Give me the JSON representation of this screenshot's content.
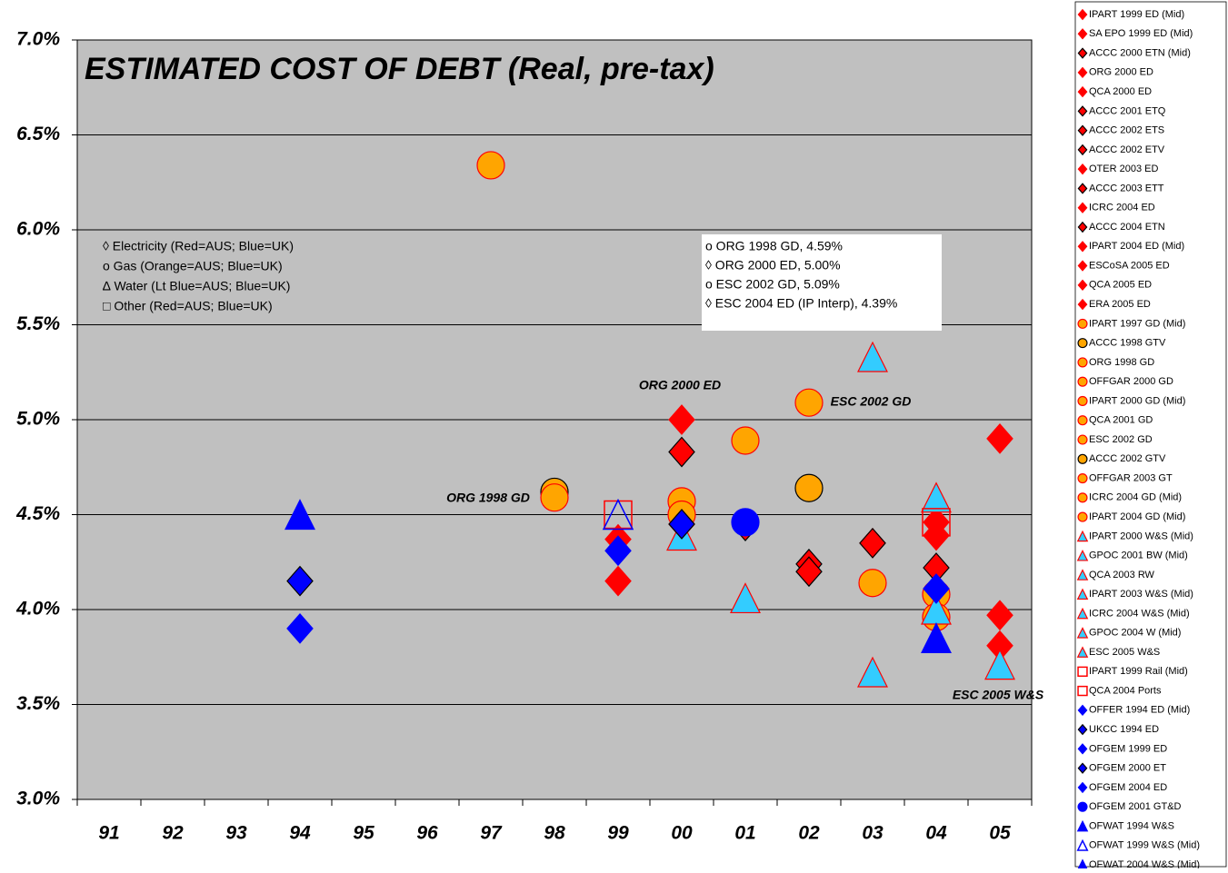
{
  "chart_data": {
    "type": "scatter",
    "title": "ESTIMATED COST OF DEBT (Real, pre-tax)",
    "categories": [
      "91",
      "92",
      "93",
      "94",
      "95",
      "96",
      "97",
      "98",
      "99",
      "00",
      "01",
      "02",
      "03",
      "04",
      "05"
    ],
    "ylim": [
      3.0,
      7.0
    ],
    "yticks": [
      {
        "value": 3.0,
        "label": "3.0%"
      },
      {
        "value": 3.5,
        "label": "3.5%"
      },
      {
        "value": 4.0,
        "label": "4.0%"
      },
      {
        "value": 4.5,
        "label": "4.5%"
      },
      {
        "value": 5.0,
        "label": "5.0%"
      },
      {
        "value": 5.5,
        "label": "5.5%"
      },
      {
        "value": 6.0,
        "label": "6.0%"
      },
      {
        "value": 6.5,
        "label": "6.5%"
      },
      {
        "value": 7.0,
        "label": "7.0%"
      }
    ],
    "grid": true,
    "legend": "right",
    "key": [
      "◊ Electricity (Red=AUS; Blue=UK)",
      "o  Gas  (Orange=AUS; Blue=UK)",
      "∆ Water  (Lt Blue=AUS; Blue=UK)",
      "□ Other  (Red=AUS; Blue=UK)"
    ],
    "notes": [
      "o ORG 1998 GD, 4.59%",
      "◊ ORG 2000 ED, 5.00%",
      "o ESC 2002 GD, 5.09%",
      "◊ ESC 2004 ED (IP Interp), 4.39%"
    ],
    "annotations": [
      "ORG 2000 ED",
      "ORG 1998 GD",
      "ESC 2002 GD",
      "ESC 2005 W&S"
    ],
    "series": [
      {
        "name": "IPART 1999 ED (Mid)",
        "marker": "diamond",
        "color": "#ff0000",
        "edge": "#ff0000",
        "values": [
          null,
          null,
          null,
          null,
          null,
          null,
          null,
          null,
          4.37,
          null,
          null,
          null,
          null,
          null,
          null
        ]
      },
      {
        "name": "SA EPO 1999 ED (Mid)",
        "marker": "diamond",
        "color": "#ff0000",
        "edge": "#ff0000",
        "values": [
          null,
          null,
          null,
          null,
          null,
          null,
          null,
          null,
          4.15,
          null,
          null,
          null,
          null,
          null,
          null
        ]
      },
      {
        "name": "ACCC 2000 ETN (Mid)",
        "marker": "diamond",
        "color": "#ff0000",
        "edge": "#000000",
        "values": [
          null,
          null,
          null,
          null,
          null,
          null,
          null,
          null,
          null,
          4.83,
          null,
          null,
          null,
          null,
          null
        ]
      },
      {
        "name": "ORG 2000 ED",
        "marker": "diamond",
        "color": "#ff0000",
        "edge": "#ff0000",
        "values": [
          null,
          null,
          null,
          null,
          null,
          null,
          null,
          null,
          null,
          5.0,
          null,
          null,
          null,
          null,
          null
        ]
      },
      {
        "name": "QCA 2000 ED",
        "marker": "diamond",
        "color": "#ff0000",
        "edge": "#ff0000",
        "values": [
          null,
          null,
          null,
          null,
          null,
          null,
          null,
          null,
          null,
          4.45,
          null,
          null,
          null,
          null,
          null
        ]
      },
      {
        "name": "ACCC 2001 ETQ",
        "marker": "diamond",
        "color": "#ff0000",
        "edge": "#000000",
        "values": [
          null,
          null,
          null,
          null,
          null,
          null,
          null,
          null,
          null,
          null,
          4.44,
          null,
          null,
          null,
          null
        ]
      },
      {
        "name": "ACCC 2002 ETS",
        "marker": "diamond",
        "color": "#ff0000",
        "edge": "#000000",
        "values": [
          null,
          null,
          null,
          null,
          null,
          null,
          null,
          null,
          null,
          null,
          null,
          4.24,
          null,
          null,
          null
        ]
      },
      {
        "name": "ACCC 2002 ETV",
        "marker": "diamond",
        "color": "#ff0000",
        "edge": "#000000",
        "values": [
          null,
          null,
          null,
          null,
          null,
          null,
          null,
          null,
          null,
          null,
          null,
          4.2,
          null,
          null,
          null
        ]
      },
      {
        "name": "OTER 2003 ED",
        "marker": "diamond",
        "color": "#ff0000",
        "edge": "#ff0000",
        "values": [
          null,
          null,
          null,
          null,
          null,
          null,
          null,
          null,
          null,
          null,
          null,
          null,
          4.35,
          null,
          null
        ]
      },
      {
        "name": "ACCC 2003 ETT",
        "marker": "diamond",
        "color": "#ff0000",
        "edge": "#000000",
        "values": [
          null,
          null,
          null,
          null,
          null,
          null,
          null,
          null,
          null,
          null,
          null,
          null,
          4.35,
          null,
          null
        ]
      },
      {
        "name": "ICRC 2004 ED",
        "marker": "diamond",
        "color": "#ff0000",
        "edge": "#ff0000",
        "values": [
          null,
          null,
          null,
          null,
          null,
          null,
          null,
          null,
          null,
          null,
          null,
          null,
          null,
          4.39,
          null
        ]
      },
      {
        "name": "ACCC 2004 ETN",
        "marker": "diamond",
        "color": "#ff0000",
        "edge": "#000000",
        "values": [
          null,
          null,
          null,
          null,
          null,
          null,
          null,
          null,
          null,
          null,
          null,
          null,
          null,
          4.22,
          null
        ]
      },
      {
        "name": "IPART 2004 ED (Mid)",
        "marker": "diamond",
        "color": "#ff0000",
        "edge": "#ff0000",
        "values": [
          null,
          null,
          null,
          null,
          null,
          null,
          null,
          null,
          null,
          null,
          null,
          null,
          null,
          4.46,
          null
        ]
      },
      {
        "name": "ESCoSA 2005 ED",
        "marker": "diamond",
        "color": "#ff0000",
        "edge": "#ff0000",
        "values": [
          null,
          null,
          null,
          null,
          null,
          null,
          null,
          null,
          null,
          null,
          null,
          null,
          null,
          null,
          4.9
        ]
      },
      {
        "name": "QCA 2005 ED",
        "marker": "diamond",
        "color": "#ff0000",
        "edge": "#ff0000",
        "values": [
          null,
          null,
          null,
          null,
          null,
          null,
          null,
          null,
          null,
          null,
          null,
          null,
          null,
          null,
          3.97
        ]
      },
      {
        "name": "ERA 2005 ED",
        "marker": "diamond",
        "color": "#ff0000",
        "edge": "#ff0000",
        "values": [
          null,
          null,
          null,
          null,
          null,
          null,
          null,
          null,
          null,
          null,
          null,
          null,
          null,
          null,
          3.81
        ]
      },
      {
        "name": "IPART 1997 GD (Mid)",
        "marker": "circle",
        "color": "#ffa500",
        "edge": "#ff0000",
        "values": [
          null,
          null,
          null,
          null,
          null,
          null,
          6.34,
          null,
          null,
          null,
          null,
          null,
          null,
          null,
          null
        ]
      },
      {
        "name": "ACCC 1998 GTV",
        "marker": "circle",
        "color": "#ffa500",
        "edge": "#000000",
        "values": [
          null,
          null,
          null,
          null,
          null,
          null,
          null,
          4.62,
          null,
          null,
          null,
          null,
          null,
          null,
          null
        ]
      },
      {
        "name": "ORG 1998 GD",
        "marker": "circle",
        "color": "#ffa500",
        "edge": "#ff0000",
        "values": [
          null,
          null,
          null,
          null,
          null,
          null,
          null,
          4.59,
          null,
          null,
          null,
          null,
          null,
          null,
          null
        ]
      },
      {
        "name": "OFFGAR 2000 GD",
        "marker": "circle",
        "color": "#ffa500",
        "edge": "#ff0000",
        "values": [
          null,
          null,
          null,
          null,
          null,
          null,
          null,
          null,
          null,
          4.57,
          null,
          null,
          null,
          null,
          null
        ]
      },
      {
        "name": "IPART 2000 GD (Mid)",
        "marker": "circle",
        "color": "#ffa500",
        "edge": "#ff0000",
        "values": [
          null,
          null,
          null,
          null,
          null,
          null,
          null,
          null,
          null,
          4.5,
          null,
          null,
          null,
          null,
          null
        ]
      },
      {
        "name": "QCA 2001 GD",
        "marker": "circle",
        "color": "#ffa500",
        "edge": "#ff0000",
        "values": [
          null,
          null,
          null,
          null,
          null,
          null,
          null,
          null,
          null,
          null,
          4.89,
          null,
          null,
          null,
          null
        ]
      },
      {
        "name": "ESC 2002 GD",
        "marker": "circle",
        "color": "#ffa500",
        "edge": "#ff0000",
        "values": [
          null,
          null,
          null,
          null,
          null,
          null,
          null,
          null,
          null,
          null,
          null,
          5.09,
          null,
          null,
          null
        ]
      },
      {
        "name": "ACCC 2002 GTV",
        "marker": "circle",
        "color": "#ffa500",
        "edge": "#000000",
        "values": [
          null,
          null,
          null,
          null,
          null,
          null,
          null,
          null,
          null,
          null,
          null,
          4.64,
          null,
          null,
          null
        ]
      },
      {
        "name": "OFFGAR 2003 GT",
        "marker": "circle",
        "color": "#ffa500",
        "edge": "#ff0000",
        "values": [
          null,
          null,
          null,
          null,
          null,
          null,
          null,
          null,
          null,
          null,
          null,
          null,
          4.14,
          null,
          null
        ]
      },
      {
        "name": "ICRC 2004 GD (Mid)",
        "marker": "circle",
        "color": "#ffa500",
        "edge": "#ff0000",
        "values": [
          null,
          null,
          null,
          null,
          null,
          null,
          null,
          null,
          null,
          null,
          null,
          null,
          null,
          4.08,
          null
        ]
      },
      {
        "name": "IPART 2004 GD (Mid)",
        "marker": "circle",
        "color": "#ffa500",
        "edge": "#ff0000",
        "values": [
          null,
          null,
          null,
          null,
          null,
          null,
          null,
          null,
          null,
          null,
          null,
          null,
          null,
          3.96,
          null
        ]
      },
      {
        "name": "IPART 2000 W&S (Mid)",
        "marker": "triangle",
        "color": "#33ccff",
        "edge": "#ff0000",
        "values": [
          null,
          null,
          null,
          null,
          null,
          null,
          null,
          null,
          null,
          4.39,
          null,
          null,
          null,
          null,
          null
        ]
      },
      {
        "name": "GPOC 2001 BW (Mid)",
        "marker": "triangle",
        "color": "#33ccff",
        "edge": "#ff0000",
        "values": [
          null,
          null,
          null,
          null,
          null,
          null,
          null,
          null,
          null,
          null,
          4.06,
          null,
          null,
          null,
          null
        ]
      },
      {
        "name": "QCA 2003 RW",
        "marker": "triangle",
        "color": "#33ccff",
        "edge": "#ff0000",
        "values": [
          null,
          null,
          null,
          null,
          null,
          null,
          null,
          null,
          null,
          null,
          null,
          null,
          5.33,
          null,
          null
        ]
      },
      {
        "name": "IPART 2003 W&S (Mid)",
        "marker": "triangle",
        "color": "#33ccff",
        "edge": "#ff0000",
        "values": [
          null,
          null,
          null,
          null,
          null,
          null,
          null,
          null,
          null,
          null,
          null,
          null,
          3.67,
          null,
          null
        ]
      },
      {
        "name": "ICRC 2004 W&S (Mid)",
        "marker": "triangle",
        "color": "#33ccff",
        "edge": "#ff0000",
        "values": [
          null,
          null,
          null,
          null,
          null,
          null,
          null,
          null,
          null,
          null,
          null,
          null,
          null,
          4.59,
          null
        ]
      },
      {
        "name": "GPOC 2004 W (Mid)",
        "marker": "triangle",
        "color": "#33ccff",
        "edge": "#ff0000",
        "values": [
          null,
          null,
          null,
          null,
          null,
          null,
          null,
          null,
          null,
          null,
          null,
          null,
          null,
          4.0,
          null
        ]
      },
      {
        "name": "ESC 2005 W&S",
        "marker": "triangle",
        "color": "#33ccff",
        "edge": "#ff0000",
        "values": [
          null,
          null,
          null,
          null,
          null,
          null,
          null,
          null,
          null,
          null,
          null,
          null,
          null,
          null,
          3.71
        ]
      },
      {
        "name": "IPART 1999 Rail (Mid)",
        "marker": "square",
        "color": "#ff0000",
        "edge": "#ff0000",
        "hollow": true,
        "values": [
          null,
          null,
          null,
          null,
          null,
          null,
          null,
          null,
          4.5,
          null,
          null,
          null,
          null,
          null,
          null
        ]
      },
      {
        "name": "QCA 2004 Ports",
        "marker": "square",
        "color": "#ff0000",
        "edge": "#ff0000",
        "hollow": true,
        "values": [
          null,
          null,
          null,
          null,
          null,
          null,
          null,
          null,
          null,
          null,
          null,
          null,
          null,
          4.46,
          null
        ]
      },
      {
        "name": "OFFER 1994 ED (Mid)",
        "marker": "diamond",
        "color": "#0000ff",
        "edge": "#0000ff",
        "values": [
          null,
          null,
          null,
          3.9,
          null,
          null,
          null,
          null,
          null,
          null,
          null,
          null,
          null,
          null,
          null
        ]
      },
      {
        "name": "UKCC 1994 ED",
        "marker": "diamond",
        "color": "#0000ff",
        "edge": "#000000",
        "values": [
          null,
          null,
          null,
          4.15,
          null,
          null,
          null,
          null,
          null,
          null,
          null,
          null,
          null,
          null,
          null
        ]
      },
      {
        "name": "OFGEM 1999 ED",
        "marker": "diamond",
        "color": "#0000ff",
        "edge": "#0000ff",
        "values": [
          null,
          null,
          null,
          null,
          null,
          null,
          null,
          null,
          4.31,
          null,
          null,
          null,
          null,
          null,
          null
        ]
      },
      {
        "name": "OFGEM 2000 ET",
        "marker": "diamond",
        "color": "#0000ff",
        "edge": "#000000",
        "values": [
          null,
          null,
          null,
          null,
          null,
          null,
          null,
          null,
          null,
          4.45,
          null,
          null,
          null,
          null,
          null
        ]
      },
      {
        "name": "OFGEM 2004 ED",
        "marker": "diamond",
        "color": "#0000ff",
        "edge": "#0000ff",
        "values": [
          null,
          null,
          null,
          null,
          null,
          null,
          null,
          null,
          null,
          null,
          null,
          null,
          null,
          4.11,
          null
        ]
      },
      {
        "name": "OFGEM 2001 GT&D",
        "marker": "circle",
        "color": "#0000ff",
        "edge": "#0000ff",
        "values": [
          null,
          null,
          null,
          null,
          null,
          null,
          null,
          null,
          null,
          null,
          4.46,
          null,
          null,
          null,
          null
        ]
      },
      {
        "name": "OFWAT 1994 W&S",
        "marker": "triangle",
        "color": "#0000ff",
        "edge": "#0000ff",
        "values": [
          null,
          null,
          null,
          4.5,
          null,
          null,
          null,
          null,
          null,
          null,
          null,
          null,
          null,
          null,
          null
        ]
      },
      {
        "name": "OFWAT 1999 W&S (Mid)",
        "marker": "triangle",
        "color": "#0000ff",
        "edge": "#0000ff",
        "hollow": true,
        "values": [
          null,
          null,
          null,
          null,
          null,
          null,
          null,
          null,
          4.5,
          null,
          null,
          null,
          null,
          null,
          null
        ]
      },
      {
        "name": "OFWAT 2004 W&S (Mid)",
        "marker": "triangle",
        "color": "#0000ff",
        "edge": "#0000ff",
        "values": [
          null,
          null,
          null,
          null,
          null,
          null,
          null,
          null,
          null,
          null,
          null,
          null,
          null,
          3.85,
          null
        ]
      }
    ]
  }
}
